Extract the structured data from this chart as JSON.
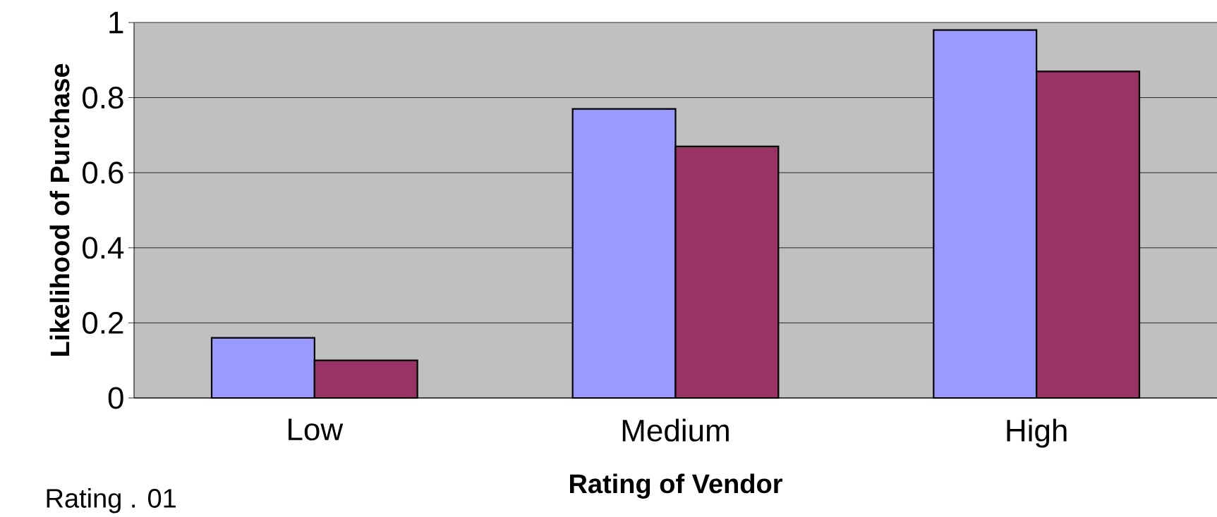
{
  "chart_data": {
    "type": "bar",
    "xlabel": "Rating of Vendor",
    "ylabel": "Likelihood of Purchase",
    "categories": [
      "Low",
      "Medium",
      "High"
    ],
    "series": [
      {
        "color": "#9999ff",
        "values": [
          0.16,
          0.77,
          0.98
        ]
      },
      {
        "color": "#993366",
        "values": [
          0.1,
          0.67,
          0.87
        ]
      }
    ],
    "ylim": [
      0,
      1
    ],
    "yticks": [
      0,
      0.2,
      0.4,
      0.6,
      0.8,
      1
    ],
    "grid": "y",
    "annotations": [
      "Rating . 01"
    ]
  }
}
